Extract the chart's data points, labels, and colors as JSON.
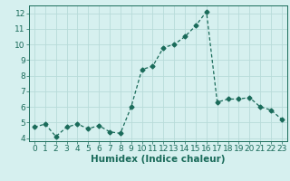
{
  "x": [
    0,
    1,
    2,
    3,
    4,
    5,
    6,
    7,
    8,
    9,
    10,
    11,
    12,
    13,
    14,
    15,
    16,
    17,
    18,
    19,
    20,
    21,
    22,
    23
  ],
  "y": [
    4.7,
    4.9,
    4.1,
    4.7,
    4.9,
    4.6,
    4.8,
    4.4,
    4.3,
    6.0,
    8.4,
    8.6,
    9.8,
    10.0,
    10.5,
    11.2,
    12.1,
    6.3,
    6.5,
    6.5,
    6.6,
    6.0,
    5.8,
    5.2
  ],
  "xlabel": "Humidex (Indice chaleur)",
  "ylim": [
    3.8,
    12.5
  ],
  "xlim": [
    -0.5,
    23.5
  ],
  "yticks": [
    4,
    5,
    6,
    7,
    8,
    9,
    10,
    11,
    12
  ],
  "xticks": [
    0,
    1,
    2,
    3,
    4,
    5,
    6,
    7,
    8,
    9,
    10,
    11,
    12,
    13,
    14,
    15,
    16,
    17,
    18,
    19,
    20,
    21,
    22,
    23
  ],
  "line_color": "#1a6b5a",
  "marker": "D",
  "marker_size": 2.5,
  "bg_color": "#d6f0ef",
  "grid_color": "#b8dbd9",
  "tick_color": "#1a6b5a",
  "label_color": "#1a6b5a",
  "tick_fontsize": 6.5,
  "xlabel_fontsize": 7.5
}
